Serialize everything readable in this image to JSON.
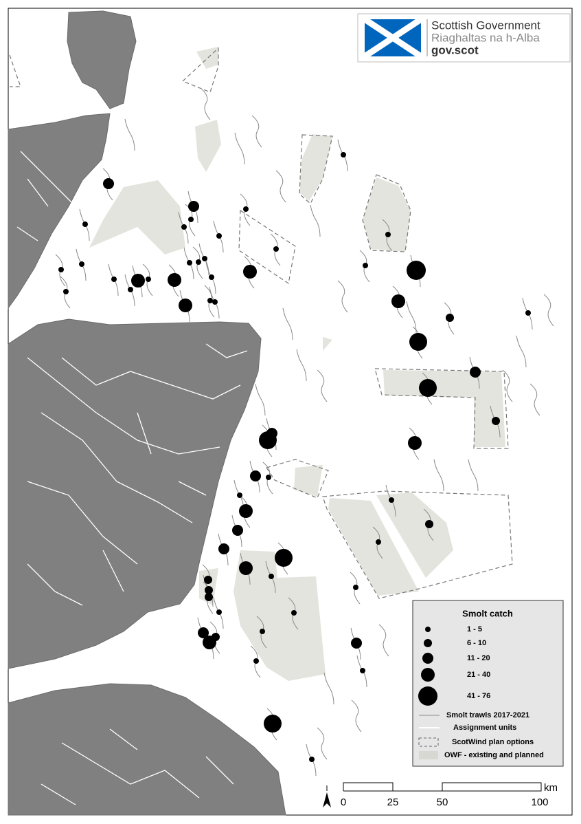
{
  "logo": {
    "name": "Scottish Government",
    "gaelic": "Riaghaltas na h-Alba",
    "url": "gov.scot"
  },
  "legend": {
    "title": "Smolt catch",
    "classes": [
      "1 - 5",
      "6 - 10",
      "11 - 20",
      "21 - 40",
      "41 - 76"
    ],
    "layers": [
      "Smolt trawls 2017-2021",
      "Assignment units",
      "ScotWind plan options",
      "OWF - existing and planned"
    ]
  },
  "scale_bar": {
    "labels": [
      "0",
      "25",
      "50",
      "100"
    ],
    "unit": "km"
  }
}
